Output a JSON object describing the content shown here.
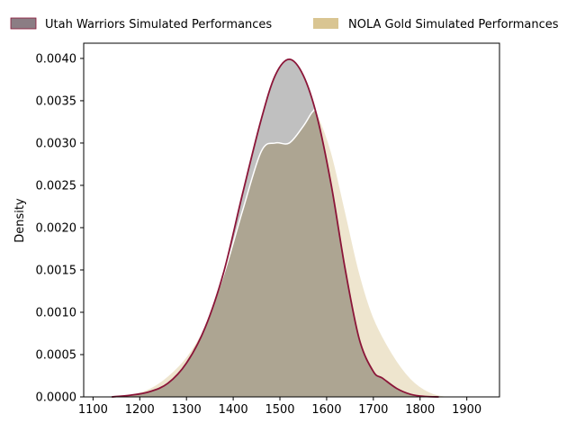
{
  "chart_data": {
    "type": "area",
    "title": "",
    "xlabel": "",
    "ylabel": "Density",
    "xlim": [
      1080,
      1970
    ],
    "ylim": [
      0,
      0.00418
    ],
    "x_ticks": [
      1100,
      1200,
      1300,
      1400,
      1500,
      1600,
      1700,
      1800,
      1900
    ],
    "y_ticks": [
      0,
      0.0005,
      0.001,
      0.0015,
      0.002,
      0.0025,
      0.003,
      0.0035,
      0.004
    ],
    "y_tick_labels": [
      "0.0000",
      "0.0005",
      "0.0010",
      "0.0015",
      "0.0020",
      "0.0025",
      "0.0030",
      "0.0035",
      "0.0040"
    ],
    "x_tick_labels": [
      "1100",
      "1200",
      "1300",
      "1400",
      "1500",
      "1600",
      "1700",
      "1800",
      "1900"
    ],
    "grid": false,
    "legend_placement": "top",
    "colors": {
      "utah_fill": "#8b7d84",
      "utah_line": "#8b1538",
      "nola_fill": "#d9c592",
      "nola_line": "#ffffff",
      "overlap_fill": "#ada592",
      "utah_only_fill": "#c0c0c0"
    },
    "series": [
      {
        "name": "Utah Warriors Simulated Performances",
        "x": [
          1140,
          1180,
          1220,
          1260,
          1300,
          1340,
          1380,
          1420,
          1460,
          1490,
          1520,
          1550,
          1580,
          1610,
          1640,
          1670,
          1700,
          1720,
          1750,
          1780,
          1810,
          1840
        ],
        "values": [
          0.0,
          2e-05,
          6e-05,
          0.00016,
          0.0004,
          0.00082,
          0.00148,
          0.0024,
          0.00328,
          0.0038,
          0.00399,
          0.0038,
          0.0033,
          0.0025,
          0.0015,
          0.00068,
          0.0003,
          0.00022,
          0.0001,
          3e-05,
          5e-06,
          0.0
        ]
      },
      {
        "name": "NOLA Gold Simulated Performances",
        "x": [
          1140,
          1180,
          1220,
          1260,
          1300,
          1340,
          1380,
          1420,
          1460,
          1490,
          1520,
          1550,
          1570,
          1580,
          1610,
          1640,
          1670,
          1700,
          1740,
          1780,
          1820,
          1860,
          1900
        ],
        "values": [
          0.0,
          3e-05,
          0.0001,
          0.00025,
          0.00048,
          0.00085,
          0.00145,
          0.0022,
          0.0029,
          0.003,
          0.003,
          0.0032,
          0.00337,
          0.00335,
          0.0029,
          0.0022,
          0.00148,
          0.00095,
          0.00052,
          0.00022,
          6e-05,
          8e-06,
          0.0
        ]
      }
    ]
  }
}
